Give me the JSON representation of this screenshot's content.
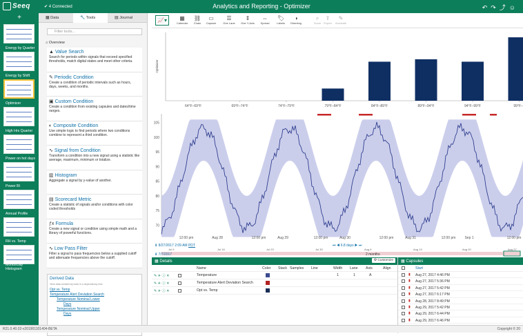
{
  "app": {
    "logo": "Seeq",
    "connection": "4 Connected",
    "title": "Analytics and Reporting - Optimizer"
  },
  "worksheets": [
    {
      "label": "Energy by Quarter"
    },
    {
      "label": "Energy by Shift"
    },
    {
      "label": "Optimizer",
      "active": true
    },
    {
      "label": "High Hrs Quarter"
    },
    {
      "label": "Power on hot days"
    },
    {
      "label": "Power BI"
    },
    {
      "label": "Annual Profile"
    },
    {
      "label": "RH vs. Temp"
    },
    {
      "label": "Month/Day Histogram"
    }
  ],
  "tools_panel": {
    "tabs": [
      "Data",
      "Tools",
      "Journal"
    ],
    "active_tab": "Tools",
    "filter_placeholder": "Filter tools...",
    "overview": "Overview",
    "items": [
      {
        "icon": "value-search-icon",
        "title": "Value Search",
        "desc": "Search for periods within signals that exceed specified thresholds, match digital states and meet other criteria."
      },
      {
        "icon": "periodic-condition-icon",
        "title": "Periodic Condition",
        "desc": "Create a condition of periodic intervals such as hours, days, weeks, and months."
      },
      {
        "icon": "custom-condition-icon",
        "title": "Custom Condition",
        "desc": "Create a condition from existing capsules and dates/time ranges."
      },
      {
        "icon": "composite-condition-icon",
        "title": "Composite Condition",
        "desc": "Use simple logic to find periods where two conditions combine to represent a third condition."
      },
      {
        "icon": "signal-from-condition-icon",
        "title": "Signal from Condition",
        "desc": "Transform a condition into a new signal using a statistic like average, maximum, minimum or totalize."
      },
      {
        "icon": "histogram-icon",
        "title": "Histogram",
        "desc": "Aggregate a signal by y-value of another."
      },
      {
        "icon": "scorecard-icon",
        "title": "Scorecard Metric",
        "desc": "Create a statistic of signals and/or conditions with color coded thresholds"
      },
      {
        "icon": "formula-icon",
        "title": "Formula",
        "desc": "Create a new signal or condition using simple math and a library of powerful functions."
      },
      {
        "icon": "low-pass-filter-icon",
        "title": "Low Pass Filter",
        "desc": "Filter a signal to pass frequencies below a supplied cutoff and attenuate frequencies above the cutoff."
      }
    ],
    "derived": {
      "title": "Derived Data",
      "subtitle": "View data created by tools in a dependency tree",
      "rows": [
        "Opt vs. Temp",
        "Temperature Alert Deviation Search",
        "Temperature Nominal Lower",
        "Days",
        "Temperature Nominal Upper",
        "Days"
      ]
    }
  },
  "toolbar": {
    "buttons": [
      "Calendar",
      "Chain",
      "Capsule",
      "One Lane",
      "One Y-Axis",
      "Spread",
      "Labels",
      "Dimming",
      "Zoom",
      "Export",
      "Annotate"
    ]
  },
  "chart_data": [
    {
      "type": "bar",
      "ylabel": "Optimizer",
      "categories": [
        "64°F–69°F",
        "69°F–74°F",
        "74°F–79°F",
        "79°F–84°F",
        "84°F–89°F",
        "89°F–94°F",
        "94°F–99°F",
        "99°F–1"
      ],
      "values": [
        0,
        0,
        0,
        5,
        16,
        17,
        16,
        26
      ],
      "ylim": [
        0,
        28
      ]
    },
    {
      "type": "line",
      "yticks": [
        70,
        75,
        80,
        85,
        90,
        95,
        100,
        105
      ],
      "xticks": [
        "12:00 pm",
        "Aug 28",
        "12:00 pm",
        "Aug 29",
        "12:00 pm",
        "Aug 30",
        "12:00 pm",
        "Aug 31",
        "12:00 pm",
        "Sep 1",
        "12:00 pm"
      ],
      "series": [
        {
          "name": "Temperature"
        }
      ],
      "ylim": [
        68,
        107
      ]
    }
  ],
  "timenav": {
    "display_start": "8/27/2017 2:09 AM",
    "tz": "PDT",
    "duration": "6.8 days",
    "range_start": "7/7/2017",
    "range_duration": "2 months",
    "ticks": [
      "Jul 9",
      "Jul 16",
      "Jul 23",
      "Jul 30",
      "Aug 6",
      "Aug 13",
      "Aug 20",
      "Aug 27"
    ]
  },
  "details": {
    "title": "Details",
    "customize": "Customize",
    "columns": [
      "Name",
      "Color",
      "Stack",
      "Samples",
      "Line",
      "Width",
      "Lane",
      "Axis",
      "Align"
    ],
    "rows": [
      {
        "name": "Temperature",
        "color": "#3b4a8f",
        "width": "1",
        "lane": "1",
        "axis": "A"
      },
      {
        "name": "Temperature Alert Deviation Search",
        "color": "#b22222"
      },
      {
        "name": "Opt vs. Temp",
        "color": "#1a2e55"
      }
    ]
  },
  "capsules": {
    "title": "Capsules",
    "column": "Start",
    "rows": [
      "Aug 27, 2017 4:46 PM",
      "Aug 27, 2017 5:36 PM",
      "Aug 27, 2017 5:42 PM",
      "Aug 27, 2017 6:17 PM",
      "Aug 28, 2017 8:49 PM",
      "Aug 29, 2017 5:42 PM",
      "Aug 29, 2017 6:44 PM",
      "Aug 29, 2017 6:46 PM"
    ]
  },
  "status": {
    "version": "R21.0.40.02-v201901101404-BETA",
    "copyright": "Copyright © 20"
  }
}
